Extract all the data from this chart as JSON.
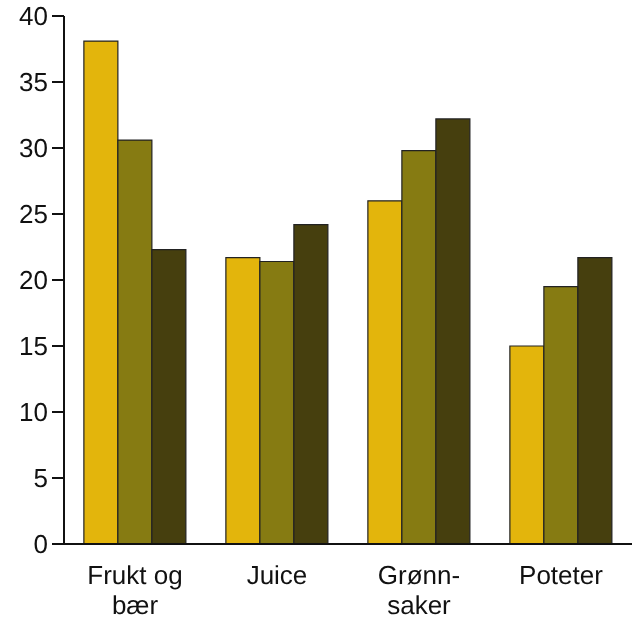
{
  "chart_data": {
    "type": "bar",
    "categories": [
      "Frukt og\nbær",
      "Juice",
      "Grønn-\nsaker",
      "Poteter"
    ],
    "series": [
      {
        "color": "#e3b50c",
        "values": [
          38.1,
          21.7,
          26,
          15
        ]
      },
      {
        "color": "#867b12",
        "values": [
          30.6,
          21.4,
          29.8,
          19.5
        ]
      },
      {
        "color": "#463f0e",
        "values": [
          22.3,
          24.2,
          32.2,
          21.7
        ]
      }
    ],
    "ylim": [
      0,
      40
    ],
    "yticks": [
      0,
      5,
      10,
      15,
      20,
      25,
      30,
      35,
      40
    ],
    "grid": false
  }
}
